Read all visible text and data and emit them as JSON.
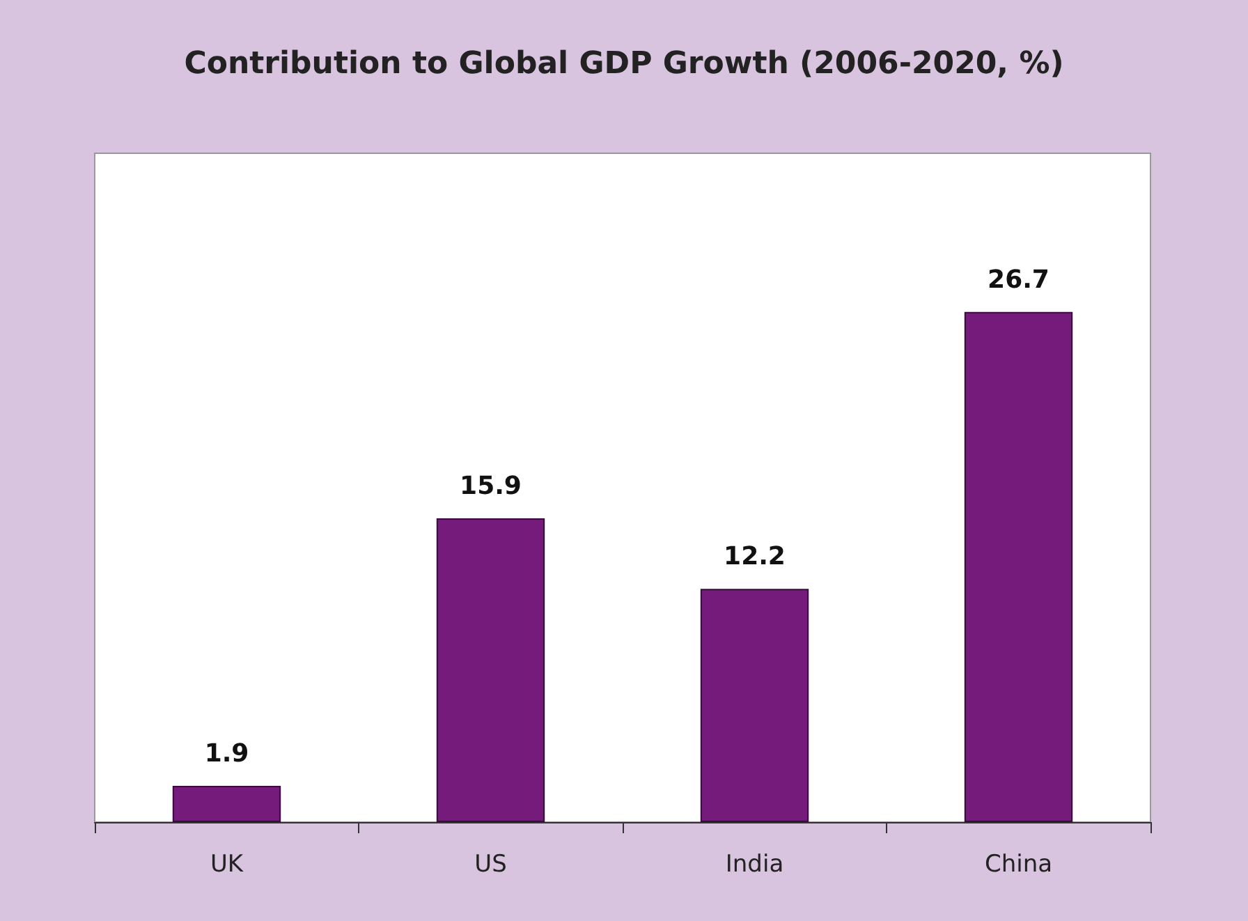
{
  "chart_data": {
    "type": "bar",
    "title": "Contribution to Global GDP Growth (2006-2020, %)",
    "categories": [
      "UK",
      "US",
      "India",
      "China"
    ],
    "values": [
      1.9,
      15.9,
      12.2,
      26.7
    ],
    "color": "#741b7c",
    "ylim": [
      0,
      35
    ],
    "data_labels": true,
    "tick_labels": "x",
    "grid": false
  }
}
